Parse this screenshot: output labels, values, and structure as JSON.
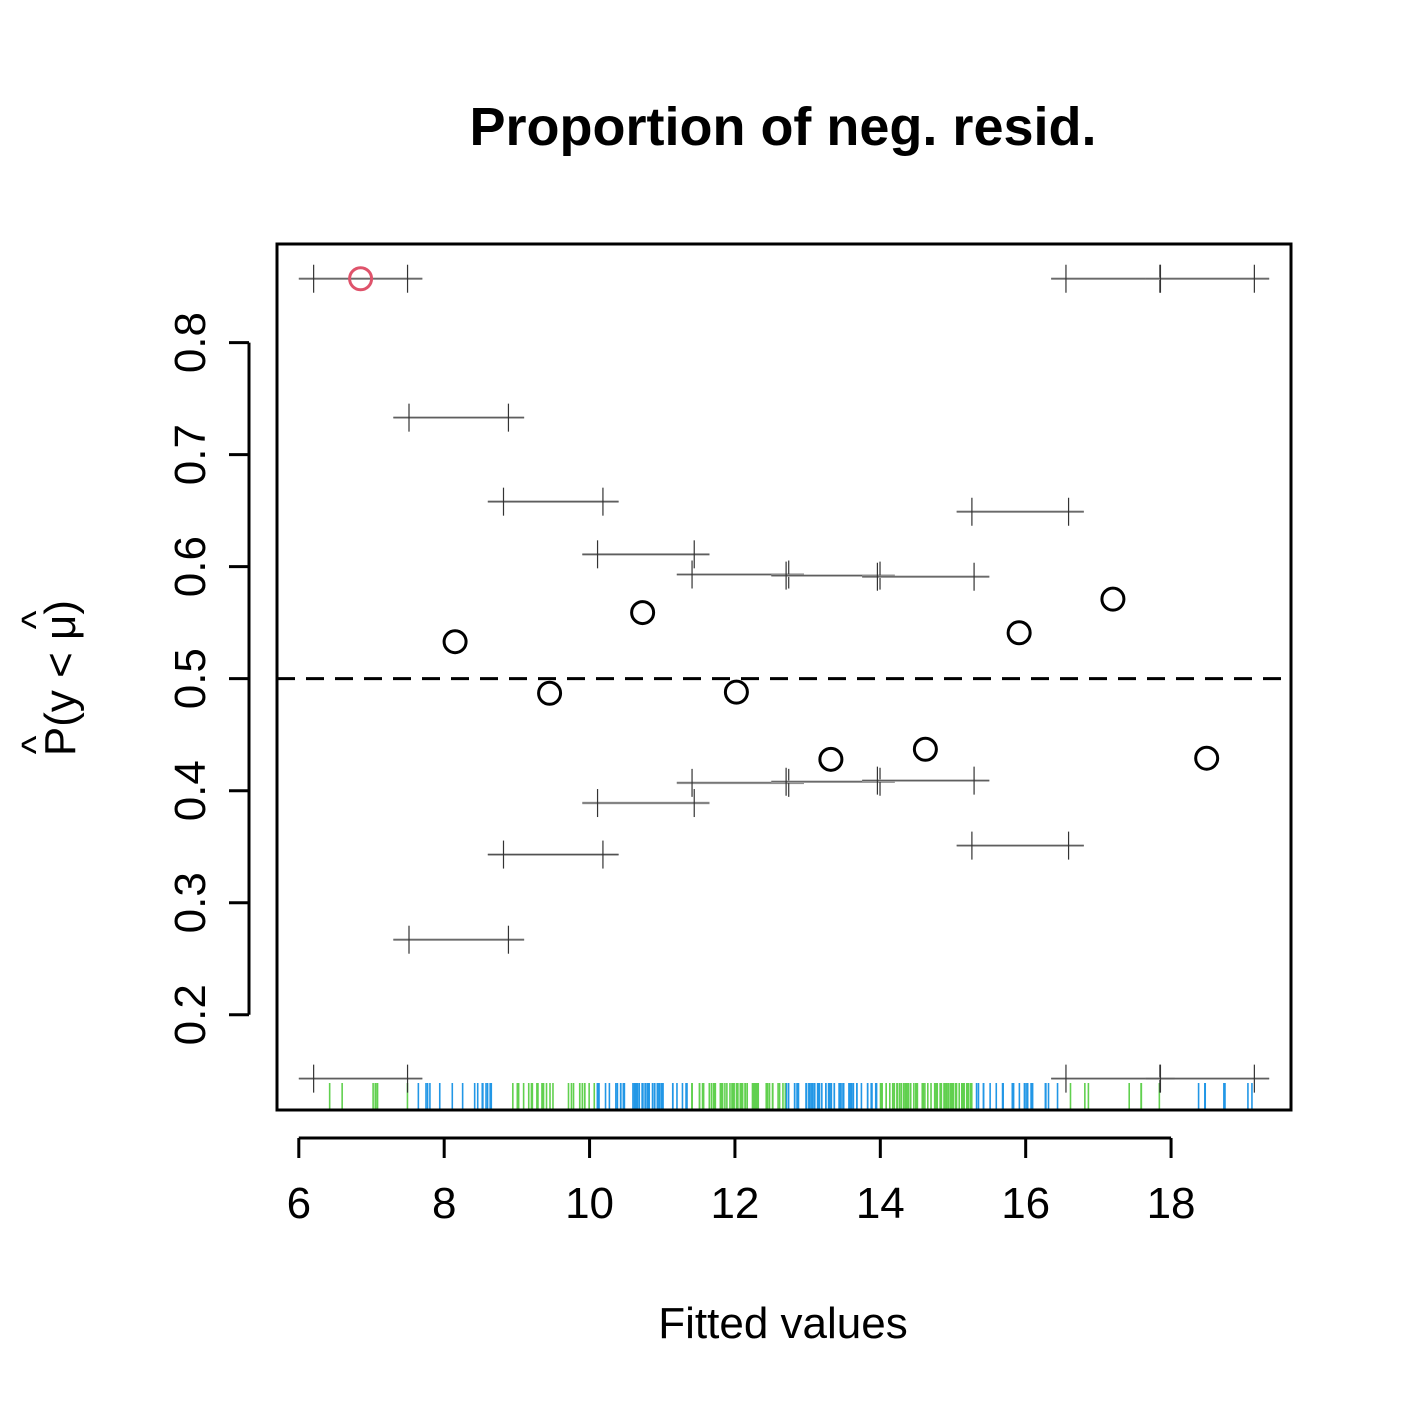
{
  "chart_data": {
    "type": "scatter",
    "title": "Proportion of neg. resid.",
    "xlabel": "Fitted values",
    "ylabel": "P(y < μ)",
    "ylabel_parts": {
      "base": "P(y < ",
      "mu": "μ",
      "close": ")",
      "hat": "^"
    },
    "xlim": [
      5.7,
      19.65
    ],
    "ylim": [
      0.115,
      0.888
    ],
    "xticks": [
      6,
      8,
      10,
      12,
      14,
      16,
      18
    ],
    "yticks": [
      0.2,
      0.3,
      0.4,
      0.5,
      0.6,
      0.7,
      0.8
    ],
    "reference_line": {
      "y": 0.5,
      "style": "dashed"
    },
    "points": [
      {
        "x": 6.85,
        "y": 0.857,
        "color": "#DF536B"
      },
      {
        "x": 8.15,
        "y": 0.533,
        "color": "#000000"
      },
      {
        "x": 9.45,
        "y": 0.487,
        "color": "#000000"
      },
      {
        "x": 10.73,
        "y": 0.559,
        "color": "#000000"
      },
      {
        "x": 12.02,
        "y": 0.488,
        "color": "#000000"
      },
      {
        "x": 13.32,
        "y": 0.428,
        "color": "#000000"
      },
      {
        "x": 14.62,
        "y": 0.437,
        "color": "#000000"
      },
      {
        "x": 15.91,
        "y": 0.541,
        "color": "#000000"
      },
      {
        "x": 17.2,
        "y": 0.571,
        "color": "#000000"
      },
      {
        "x": 18.49,
        "y": 0.429,
        "color": "#000000"
      }
    ],
    "interval_bounds": [
      {
        "x0": 6.0,
        "x1": 7.7,
        "upper": 0.857,
        "lower": 0.143
      },
      {
        "x0": 7.3,
        "x1": 9.1,
        "upper": 0.733,
        "lower": 0.267
      },
      {
        "x0": 8.6,
        "x1": 10.4,
        "upper": 0.658,
        "lower": 0.343
      },
      {
        "x0": 9.9,
        "x1": 11.65,
        "upper": 0.611,
        "lower": 0.389
      },
      {
        "x0": 11.2,
        "x1": 12.95,
        "upper": 0.593,
        "lower": 0.407
      },
      {
        "x0": 12.5,
        "x1": 14.2,
        "upper": 0.592,
        "lower": 0.408
      },
      {
        "x0": 13.75,
        "x1": 15.5,
        "upper": 0.591,
        "lower": 0.409
      },
      {
        "x0": 15.05,
        "x1": 16.8,
        "upper": 0.649,
        "lower": 0.351
      },
      {
        "x0": 16.35,
        "x1": 18.05,
        "upper": 0.857,
        "lower": 0.143
      },
      {
        "x0": 17.65,
        "x1": 19.35,
        "upper": 0.857,
        "lower": 0.143
      }
    ],
    "rug": {
      "colors": [
        "#61D04F",
        "#2297E6"
      ],
      "bins": [
        [
          6.2,
          7.5
        ],
        [
          7.5,
          8.8
        ],
        [
          8.8,
          10.1
        ],
        [
          10.1,
          11.4
        ],
        [
          11.4,
          12.7
        ],
        [
          12.7,
          13.97
        ],
        [
          13.97,
          15.27
        ],
        [
          15.27,
          16.56
        ],
        [
          16.56,
          17.85
        ],
        [
          17.85,
          19.15
        ]
      ],
      "counts": [
        7,
        15,
        26,
        45,
        60,
        55,
        60,
        22,
        7,
        7
      ]
    },
    "grid": false,
    "legend": "none"
  }
}
